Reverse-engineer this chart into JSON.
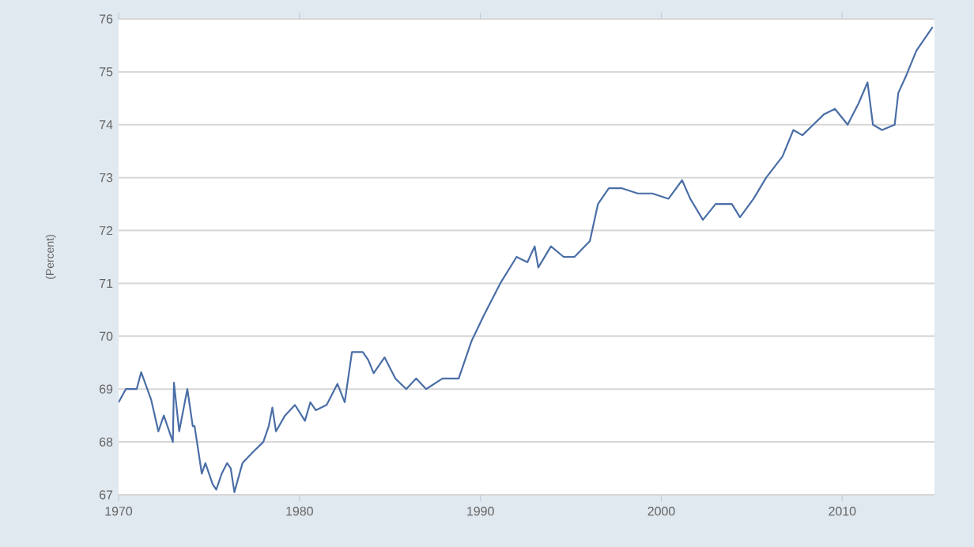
{
  "chart_data": {
    "type": "line",
    "ylabel": "(Percent)",
    "x": [
      1970.0,
      1970.4,
      1971.0,
      1971.25,
      1971.8,
      1972.2,
      1972.5,
      1973.0,
      1973.06,
      1973.35,
      1973.8,
      1974.1,
      1974.2,
      1974.6,
      1974.8,
      1975.2,
      1975.4,
      1975.7,
      1976.0,
      1976.2,
      1976.4,
      1976.85,
      1977.4,
      1978.0,
      1978.3,
      1978.5,
      1978.7,
      1979.2,
      1979.75,
      1980.3,
      1980.6,
      1980.9,
      1981.5,
      1982.1,
      1982.5,
      1982.9,
      1983.5,
      1983.8,
      1984.1,
      1984.7,
      1985.3,
      1985.9,
      1986.45,
      1987.0,
      1987.9,
      1988.8,
      1989.5,
      1990.2,
      1991.1,
      1992.0,
      1992.6,
      1993.0,
      1993.2,
      1993.9,
      1994.6,
      1995.2,
      1996.05,
      1996.5,
      1997.1,
      1997.8,
      1998.7,
      1999.5,
      2000.4,
      2001.15,
      2001.6,
      2002.3,
      2003.0,
      2003.9,
      2004.35,
      2005.1,
      2005.8,
      2006.7,
      2007.3,
      2007.8,
      2008.4,
      2009.0,
      2009.6,
      2010.3,
      2010.9,
      2011.4,
      2011.7,
      2012.2,
      2012.9,
      2013.1,
      2013.5,
      2014.1,
      2015.0
    ],
    "series": [
      {
        "color": "#4a6ea6",
        "values": [
          68.75,
          69.0,
          69.0,
          69.32,
          68.8,
          68.2,
          68.5,
          68.0,
          69.12,
          68.2,
          69.0,
          68.3,
          68.3,
          67.4,
          67.6,
          67.2,
          67.1,
          67.4,
          67.6,
          67.5,
          67.05,
          67.6,
          67.8,
          68.0,
          68.3,
          68.65,
          68.2,
          68.5,
          68.7,
          68.4,
          68.75,
          68.6,
          68.7,
          69.1,
          68.75,
          69.7,
          69.7,
          69.55,
          69.3,
          69.6,
          69.2,
          69.0,
          69.2,
          69.0,
          69.2,
          69.2,
          69.9,
          70.4,
          71.0,
          71.5,
          71.4,
          71.7,
          71.3,
          71.7,
          71.5,
          71.5,
          71.8,
          72.5,
          72.8,
          72.8,
          72.7,
          72.7,
          72.6,
          72.95,
          72.6,
          72.2,
          72.5,
          72.5,
          72.25,
          72.6,
          73.0,
          73.4,
          73.9,
          73.8,
          74.0,
          74.2,
          74.3,
          74.0,
          74.4,
          74.8,
          74.0,
          73.9,
          74.0,
          74.6,
          74.9,
          75.4,
          75.85
        ]
      }
    ],
    "xlim": [
      1970,
      2015.1
    ],
    "xticks": [
      1970,
      1980,
      1990,
      2000,
      2010
    ],
    "ylim": [
      67,
      76
    ],
    "yticks": [
      67,
      68,
      69,
      70,
      71,
      72,
      73,
      74,
      75,
      76
    ],
    "grid": "y",
    "legend": false
  }
}
